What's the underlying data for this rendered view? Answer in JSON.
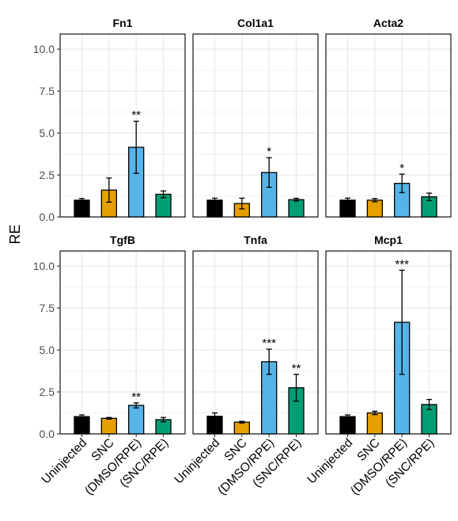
{
  "chart_data": {
    "type": "bar",
    "ylabel": "RE",
    "xlabel": "",
    "ylim": [
      0,
      10.9
    ],
    "yticks": [
      "0.0",
      "2.5",
      "5.0",
      "7.5",
      "10.0"
    ],
    "yticks_values": [
      0,
      2.5,
      5,
      7.5,
      10
    ],
    "grid": true,
    "legend": "none",
    "categories": [
      "Uninjected",
      "SNC",
      "(DMSO/RPE)",
      "(SNC/RPE)"
    ],
    "colors": [
      "#000000",
      "#E69F00",
      "#56B4E9",
      "#009E73"
    ],
    "panels": [
      {
        "title": "Fn1",
        "values": [
          1.0,
          1.6,
          4.15,
          1.35
        ],
        "err": [
          0.1,
          0.72,
          1.55,
          0.2
        ],
        "sig": [
          "",
          "",
          "**",
          ""
        ]
      },
      {
        "title": "Col1a1",
        "values": [
          1.0,
          0.8,
          2.65,
          1.03
        ],
        "err": [
          0.12,
          0.32,
          0.88,
          0.08
        ],
        "sig": [
          "",
          "",
          "*",
          ""
        ]
      },
      {
        "title": "Acta2",
        "values": [
          1.0,
          1.0,
          2.0,
          1.2
        ],
        "err": [
          0.12,
          0.1,
          0.55,
          0.22
        ],
        "sig": [
          "",
          "",
          "*",
          ""
        ]
      },
      {
        "title": "TgfB",
        "values": [
          1.03,
          0.93,
          1.7,
          0.85
        ],
        "err": [
          0.1,
          0.05,
          0.15,
          0.13
        ],
        "sig": [
          "",
          "",
          "**",
          ""
        ]
      },
      {
        "title": "Tnfa",
        "values": [
          1.05,
          0.7,
          4.3,
          2.75
        ],
        "err": [
          0.2,
          0.05,
          0.75,
          0.8
        ],
        "sig": [
          "",
          "",
          "***",
          "**"
        ]
      },
      {
        "title": "Mcp1",
        "values": [
          1.03,
          1.25,
          6.65,
          1.75
        ],
        "err": [
          0.1,
          0.1,
          3.1,
          0.3
        ],
        "sig": [
          "",
          "",
          "***",
          ""
        ]
      }
    ]
  }
}
